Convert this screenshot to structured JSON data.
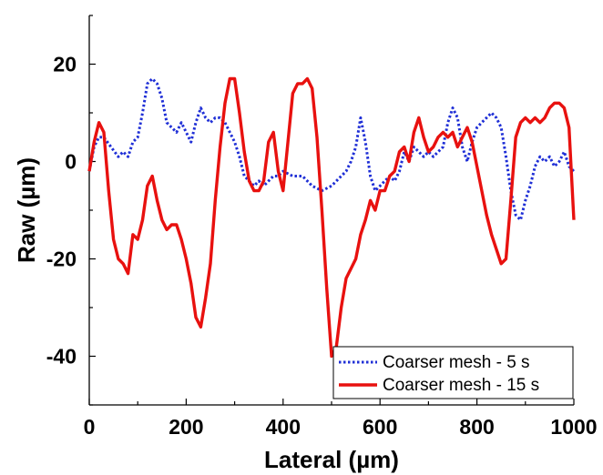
{
  "chart_data": {
    "type": "line",
    "xlabel": "Lateral (µm)",
    "ylabel": "Raw (µm)",
    "xlim": [
      0,
      1000
    ],
    "ylim": [
      -50,
      30
    ],
    "xticks": [
      0,
      200,
      400,
      600,
      800,
      1000
    ],
    "yticks": [
      20,
      0,
      -20,
      -40
    ],
    "grid": false,
    "legend_position": "bottom-right",
    "series": [
      {
        "name": "Coarser mesh - 5 s",
        "color": "#1f2fd6",
        "style": "dotted",
        "x": [
          0,
          10,
          20,
          30,
          45,
          60,
          70,
          80,
          90,
          100,
          110,
          120,
          130,
          140,
          150,
          160,
          170,
          180,
          190,
          200,
          210,
          220,
          230,
          240,
          250,
          260,
          270,
          280,
          290,
          300,
          310,
          320,
          330,
          340,
          350,
          360,
          370,
          380,
          390,
          400,
          420,
          440,
          460,
          480,
          500,
          510,
          520,
          530,
          540,
          550,
          560,
          570,
          580,
          590,
          600,
          610,
          620,
          630,
          640,
          650,
          660,
          670,
          680,
          690,
          700,
          710,
          720,
          730,
          740,
          750,
          760,
          770,
          780,
          790,
          800,
          810,
          820,
          830,
          840,
          850,
          860,
          870,
          880,
          890,
          900,
          910,
          920,
          930,
          940,
          950,
          960,
          970,
          980,
          990,
          1000
        ],
        "y": [
          -2,
          3,
          5,
          5,
          3,
          1,
          2,
          1,
          4,
          5,
          10,
          16,
          17,
          16,
          13,
          8,
          7,
          6,
          8,
          6,
          4,
          8,
          11,
          9,
          8,
          9,
          9,
          8,
          6,
          4,
          1,
          -3,
          -4,
          -5,
          -4,
          -5,
          -4,
          -3,
          -3,
          -2,
          -3,
          -3,
          -5,
          -6,
          -5,
          -4,
          -3,
          -2,
          0,
          3,
          9,
          4,
          -3,
          -6,
          -5,
          -4,
          -3,
          -4,
          -2,
          2,
          0,
          3,
          2,
          1,
          2,
          1,
          2,
          3,
          8,
          11,
          9,
          3,
          0,
          4,
          7,
          8,
          9,
          10,
          9,
          7,
          1,
          -6,
          -11,
          -12,
          -8,
          -5,
          -1,
          1,
          0,
          1,
          -1,
          0,
          2,
          -1,
          -2
        ]
      },
      {
        "name": "Coarser mesh - 15 s",
        "color": "#e8110f",
        "style": "solid",
        "x": [
          0,
          10,
          20,
          30,
          40,
          50,
          60,
          70,
          80,
          90,
          100,
          110,
          120,
          130,
          140,
          150,
          160,
          170,
          180,
          190,
          200,
          210,
          220,
          230,
          240,
          250,
          260,
          270,
          280,
          290,
          300,
          310,
          320,
          330,
          340,
          350,
          360,
          370,
          380,
          390,
          400,
          410,
          420,
          430,
          440,
          450,
          460,
          470,
          480,
          490,
          500,
          510,
          520,
          530,
          540,
          550,
          560,
          570,
          580,
          590,
          600,
          610,
          620,
          630,
          640,
          650,
          660,
          670,
          680,
          690,
          700,
          710,
          720,
          730,
          740,
          750,
          760,
          770,
          780,
          790,
          800,
          810,
          820,
          830,
          840,
          850,
          860,
          870,
          880,
          890,
          900,
          910,
          920,
          930,
          940,
          950,
          960,
          970,
          980,
          990,
          1000
        ],
        "y": [
          -2,
          4,
          8,
          6,
          -6,
          -16,
          -20,
          -21,
          -23,
          -15,
          -16,
          -12,
          -5,
          -3,
          -8,
          -12,
          -14,
          -13,
          -13,
          -16,
          -20,
          -25,
          -32,
          -34,
          -28,
          -21,
          -8,
          3,
          12,
          17,
          17,
          10,
          2,
          -4,
          -6,
          -6,
          -4,
          4,
          6,
          -2,
          -6,
          4,
          14,
          16,
          16,
          17,
          15,
          5,
          -10,
          -26,
          -40,
          -38,
          -30,
          -24,
          -22,
          -20,
          -15,
          -12,
          -8,
          -10,
          -6,
          -6,
          -3,
          -2,
          2,
          3,
          0,
          6,
          9,
          5,
          2,
          3,
          5,
          6,
          5,
          6,
          3,
          5,
          7,
          4,
          -1,
          -6,
          -11,
          -15,
          -18,
          -21,
          -20,
          -8,
          5,
          8,
          9,
          8,
          9,
          8,
          9,
          11,
          12,
          12,
          11,
          7,
          -12
        ]
      }
    ]
  }
}
